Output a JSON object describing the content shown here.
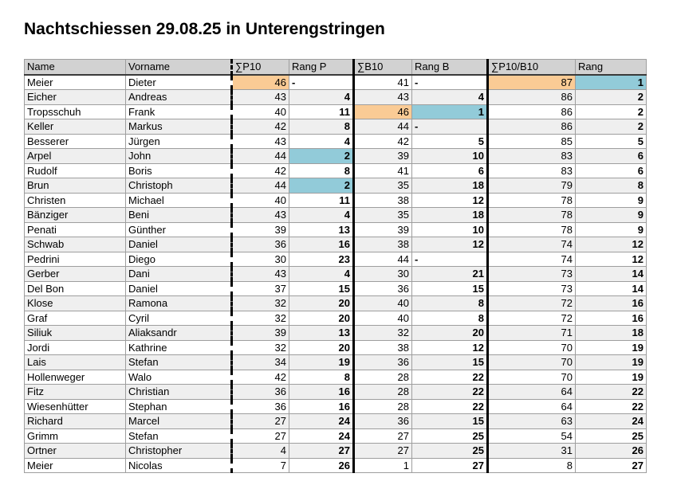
{
  "title": "Nachtschiessen 29.08.25 in Unterengstringen",
  "colors": {
    "highlight_orange": "#facb95",
    "highlight_blue": "#92cbd9",
    "header_gray": "#d2d2d2",
    "stripe_gray": "#efefef"
  },
  "table": {
    "columns": [
      {
        "key": "name",
        "label": "Name",
        "cls": "txt"
      },
      {
        "key": "vorname",
        "label": "Vorname",
        "cls": "txt"
      },
      {
        "key": "p10",
        "label": "∑P10",
        "cls": "num bl-dashed"
      },
      {
        "key": "rang_p",
        "label": "Rang P",
        "cls": "rank"
      },
      {
        "key": "b10",
        "label": "∑B10",
        "cls": "num bl-solid"
      },
      {
        "key": "rang_b",
        "label": "Rang B",
        "cls": "rank"
      },
      {
        "key": "total",
        "label": "∑P10/B10",
        "cls": "num bl-solid"
      },
      {
        "key": "rang",
        "label": "Rang",
        "cls": "rank"
      }
    ],
    "rows": [
      {
        "cells": [
          "Meier",
          "Dieter",
          "46",
          "-",
          "41",
          "-",
          "87",
          "1"
        ],
        "highlights": {
          "2": "orange",
          "6": "orange",
          "7": "blue"
        }
      },
      {
        "cells": [
          "Eicher",
          "Andreas",
          "43",
          "4",
          "43",
          "4",
          "86",
          "2"
        ]
      },
      {
        "cells": [
          "Tropsschuh",
          "Frank",
          "40",
          "11",
          "46",
          "1",
          "86",
          "2"
        ],
        "highlights": {
          "4": "orange",
          "5": "blue"
        }
      },
      {
        "cells": [
          "Keller",
          "Markus",
          "42",
          "8",
          "44",
          "-",
          "86",
          "2"
        ]
      },
      {
        "cells": [
          "Besserer",
          "Jürgen",
          "43",
          "4",
          "42",
          "5",
          "85",
          "5"
        ]
      },
      {
        "cells": [
          "Arpel",
          "John",
          "44",
          "2",
          "39",
          "10",
          "83",
          "6"
        ],
        "highlights": {
          "3": "blue"
        }
      },
      {
        "cells": [
          "Rudolf",
          "Boris",
          "42",
          "8",
          "41",
          "6",
          "83",
          "6"
        ]
      },
      {
        "cells": [
          "Brun",
          "Christoph",
          "44",
          "2",
          "35",
          "18",
          "79",
          "8"
        ],
        "highlights": {
          "3": "blue"
        }
      },
      {
        "cells": [
          "Christen",
          "Michael",
          "40",
          "11",
          "38",
          "12",
          "78",
          "9"
        ]
      },
      {
        "cells": [
          "Bänziger",
          "Beni",
          "43",
          "4",
          "35",
          "18",
          "78",
          "9"
        ]
      },
      {
        "cells": [
          "Penati",
          "Günther",
          "39",
          "13",
          "39",
          "10",
          "78",
          "9"
        ]
      },
      {
        "cells": [
          "Schwab",
          "Daniel",
          "36",
          "16",
          "38",
          "12",
          "74",
          "12"
        ]
      },
      {
        "cells": [
          "Pedrini",
          "Diego",
          "30",
          "23",
          "44",
          "-",
          "74",
          "12"
        ]
      },
      {
        "cells": [
          "Gerber",
          "Dani",
          "43",
          "4",
          "30",
          "21",
          "73",
          "14"
        ]
      },
      {
        "cells": [
          "Del Bon",
          "Daniel",
          "37",
          "15",
          "36",
          "15",
          "73",
          "14"
        ]
      },
      {
        "cells": [
          "Klose",
          "Ramona",
          "32",
          "20",
          "40",
          "8",
          "72",
          "16"
        ]
      },
      {
        "cells": [
          "Graf",
          "Cyril",
          "32",
          "20",
          "40",
          "8",
          "72",
          "16"
        ]
      },
      {
        "cells": [
          "Siliuk",
          "Aliaksandr",
          "39",
          "13",
          "32",
          "20",
          "71",
          "18"
        ]
      },
      {
        "cells": [
          "Jordi",
          "Kathrine",
          "32",
          "20",
          "38",
          "12",
          "70",
          "19"
        ]
      },
      {
        "cells": [
          "Lais",
          "Stefan",
          "34",
          "19",
          "36",
          "15",
          "70",
          "19"
        ]
      },
      {
        "cells": [
          "Hollenweger",
          "Walo",
          "42",
          "8",
          "28",
          "22",
          "70",
          "19"
        ]
      },
      {
        "cells": [
          "Fitz",
          "Christian",
          "36",
          "16",
          "28",
          "22",
          "64",
          "22"
        ]
      },
      {
        "cells": [
          "Wiesenhütter",
          "Stephan",
          "36",
          "16",
          "28",
          "22",
          "64",
          "22"
        ]
      },
      {
        "cells": [
          "Richard",
          "Marcel",
          "27",
          "24",
          "36",
          "15",
          "63",
          "24"
        ]
      },
      {
        "cells": [
          "Grimm",
          "Stefan",
          "27",
          "24",
          "27",
          "25",
          "54",
          "25"
        ]
      },
      {
        "cells": [
          "Ortner",
          "Christopher",
          "4",
          "27",
          "27",
          "25",
          "31",
          "26"
        ]
      },
      {
        "cells": [
          "Meier",
          "Nicolas",
          "7",
          "26",
          "1",
          "27",
          "8",
          "27"
        ]
      }
    ]
  }
}
